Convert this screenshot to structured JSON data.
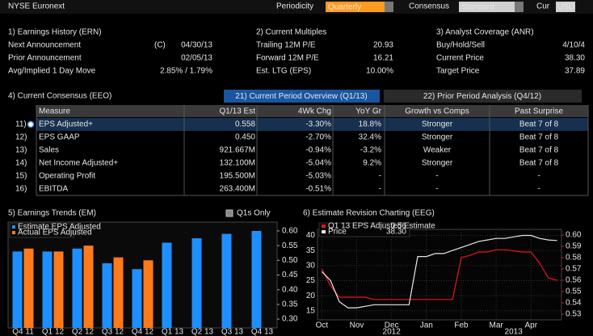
{
  "top_bar": {
    "title": "NYSE Euronext",
    "periodicity_label": "Periodicity",
    "periodicity": "Quarterly",
    "consensus_label": "Consensus",
    "consensus": "Standard",
    "currency_label": "Cur",
    "currency": "USD"
  },
  "earnings_history": {
    "title": "1) Earnings History (ERN)",
    "rows": [
      {
        "label": "Next Announcement",
        "flag": "(C)",
        "value": "04/30/13"
      },
      {
        "label": "Prior Announcement",
        "value": "02/05/13"
      },
      {
        "label": "Avg/Implied 1 Day Move",
        "value": "2.85% / 1.79%"
      }
    ]
  },
  "current_multiples": {
    "title": "2) Current Multiples",
    "rows": [
      {
        "label": "Trailing 12M P/E",
        "value": "20.93"
      },
      {
        "label": "Forward 12M P/E",
        "value": "16.21"
      },
      {
        "label": "Est. LTG (EPS)",
        "value": "10.00%"
      }
    ]
  },
  "analyst_coverage": {
    "title": "3) Analyst Coverage (ANR)",
    "rows": [
      {
        "label": "Buy/Hold/Sell",
        "value": "4/10/4"
      },
      {
        "label": "Current Price",
        "value": "38.30"
      },
      {
        "label": "Target Price",
        "value": "37.89"
      }
    ]
  },
  "consensus": {
    "title": "4) Current Consensus (EEO)",
    "tabs": [
      "21) Current Period Overview (Q1/13)",
      "22) Prior Period Analysis (Q4/12)"
    ],
    "columns": [
      "Measure",
      "Q1/13 Est",
      "4Wk Chg",
      "YoY Gr",
      "Growth vs Comps",
      "Past Surprise"
    ],
    "rows": [
      {
        "id": "11)",
        "cells": [
          "EPS Adjusted+",
          "0.558",
          "-3.30%",
          "18.8%",
          "Stronger",
          "Beat 7 of 8"
        ]
      },
      {
        "id": "12)",
        "cells": [
          "EPS GAAP",
          "0.450",
          "-2.70%",
          "32.4%",
          "Stronger",
          "Beat 7 of 8"
        ]
      },
      {
        "id": "13)",
        "cells": [
          "Sales",
          "921.667M",
          "-0.94%",
          "-3.2%",
          "Weaker",
          "Beat 7 of 8"
        ]
      },
      {
        "id": "14)",
        "cells": [
          "Net Income Adjusted+",
          "132.100M",
          "-5.04%",
          "9.2%",
          "Stronger",
          "Beat 7 of 8"
        ]
      },
      {
        "id": "15)",
        "cells": [
          "Operating Profit",
          "195.500M",
          "-5.03%",
          "-",
          "-",
          "-"
        ]
      },
      {
        "id": "16)",
        "cells": [
          "EBITDA",
          "263.400M",
          "-0.51%",
          "-",
          "-",
          "-"
        ]
      }
    ]
  },
  "earnings_trends": {
    "title": "5) Earnings Trends (EM)",
    "toggle": "Q1s Only",
    "chart_data": {
      "type": "bar",
      "categories": [
        "Q4 11",
        "Q1 12",
        "Q2 12",
        "Q3 12",
        "Q4 12",
        "Q1 13",
        "Q2 13",
        "Q3 13",
        "Q4 13"
      ],
      "series": [
        {
          "name": "Estimate EPS Adjusted",
          "color": "#1e8fff",
          "values": [
            0.53,
            0.53,
            0.54,
            0.49,
            0.47,
            0.56,
            0.575,
            0.59,
            0.6
          ]
        },
        {
          "name": "Actual EPS Adjusted",
          "color": "#ff7a1a",
          "values": [
            0.54,
            0.53,
            0.55,
            0.51,
            0.5,
            null,
            null,
            null,
            null
          ]
        }
      ],
      "ylim": [
        0.27,
        0.63
      ],
      "yticks": [
        {
          "value": 0.3,
          "label": "0.30"
        },
        {
          "value": 0.35,
          "label": "0.35"
        },
        {
          "value": 0.4,
          "label": "0.40"
        },
        {
          "value": 0.45,
          "label": "0.45"
        },
        {
          "value": 0.5,
          "label": "0.50"
        },
        {
          "value": 0.55,
          "label": "0.55"
        },
        {
          "value": 0.6,
          "label": "0.60"
        }
      ]
    }
  },
  "estimate_revision": {
    "title": "6) Estimate Revision Charting (EEG)",
    "chart_data": {
      "type": "line",
      "x": [
        "Oct",
        null,
        null,
        null,
        "Nov",
        null,
        null,
        null,
        "Dec",
        null,
        null,
        null,
        "Jan",
        null,
        null,
        null,
        "Feb",
        null,
        null,
        null,
        "Mar",
        null,
        null,
        null,
        "Apr",
        null,
        null,
        null
      ],
      "year_labels": [
        "2012",
        "2013"
      ],
      "series": [
        {
          "name": "Q1 13 EPS Adjusted Estimate",
          "legend_value": "0.56",
          "color": "#e8141e",
          "axis": "y2",
          "values": [
            0.57,
            0.555,
            0.545,
            0.545,
            0.545,
            0.545,
            0.543,
            0.543,
            0.543,
            0.543,
            0.543,
            0.543,
            0.543,
            0.543,
            0.543,
            0.543,
            0.58,
            0.582,
            0.585,
            0.585,
            0.587,
            0.587,
            0.586,
            0.585,
            0.585,
            0.575,
            0.562,
            0.56
          ]
        },
        {
          "name": "Price",
          "legend_value": "38.30",
          "color": "#e6e6e6",
          "values": [
            28,
            25,
            18,
            16,
            16,
            16.5,
            17,
            17,
            17,
            17,
            17,
            33,
            33,
            34,
            34,
            35,
            36,
            37,
            38,
            38.5,
            39,
            39,
            39.5,
            40,
            40,
            39,
            38.5,
            38.3
          ]
        }
      ],
      "ylim": [
        12,
        42
      ],
      "yticks": [
        15,
        20,
        25,
        30,
        35,
        40
      ],
      "y2lim": [
        0.525,
        0.605
      ],
      "y2ticks": [
        {
          "value": 0.53,
          "label": "0.53"
        },
        {
          "value": 0.54,
          "label": "0.54"
        },
        {
          "value": 0.55,
          "label": "0.55"
        },
        {
          "value": 0.56,
          "label": "0.56"
        },
        {
          "value": 0.57,
          "label": "0.57"
        },
        {
          "value": 0.58,
          "label": "0.58"
        },
        {
          "value": 0.59,
          "label": "0.59"
        },
        {
          "value": 0.6,
          "label": "0.60"
        }
      ]
    }
  }
}
